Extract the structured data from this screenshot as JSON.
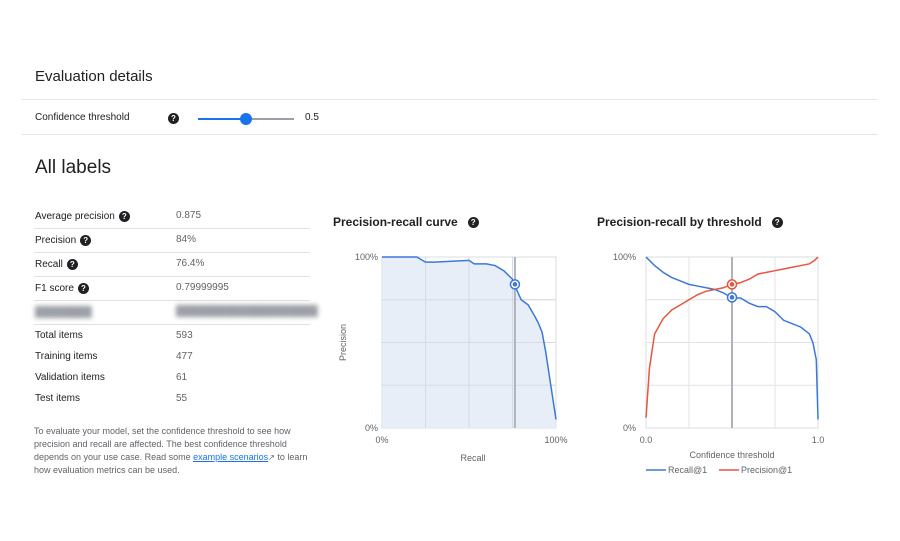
{
  "header": {
    "title": "Evaluation details"
  },
  "slider": {
    "label": "Confidence threshold",
    "value": 0.5,
    "value_text": "0.5",
    "help": "?"
  },
  "section_title": "All labels",
  "metrics": [
    {
      "label": "Average precision",
      "value": "0.875",
      "help": true
    },
    {
      "label": "Precision",
      "value": "84%",
      "help": true
    },
    {
      "label": "Recall",
      "value": "76.4%",
      "help": true
    },
    {
      "label": "F1 score",
      "value": "0.79999995",
      "help": true
    }
  ],
  "counts": [
    {
      "label": "Total items",
      "value": "593"
    },
    {
      "label": "Training items",
      "value": "477"
    },
    {
      "label": "Validation items",
      "value": "61"
    },
    {
      "label": "Test items",
      "value": "55"
    }
  ],
  "note": {
    "text_before": "To evaluate your model, set the confidence threshold to see how precision and recall are affected. The best confidence threshold depends on your use case. Read some ",
    "link": "example scenarios",
    "text_after": " to learn how evaluation metrics can be used."
  },
  "colors": {
    "accent": "#1a73e8",
    "recall": "#3c78d8",
    "precision": "#e8553e",
    "fill": "#e3ebf7"
  },
  "chart_data": [
    {
      "type": "area",
      "title": "Precision-recall curve",
      "xlabel": "Recall",
      "ylabel": "Precision",
      "x_ticks": [
        "0%",
        "100%"
      ],
      "y_ticks": [
        "0%",
        "100%"
      ],
      "xlim": [
        0,
        1
      ],
      "ylim": [
        0,
        1
      ],
      "series": [
        {
          "x": [
            0,
            0.2,
            0.25,
            0.3,
            0.5,
            0.53,
            0.6,
            0.65,
            0.7,
            0.75,
            0.76,
            0.8,
            0.84,
            0.88,
            0.9,
            0.92,
            0.94,
            1.0
          ],
          "y": [
            1.0,
            1.0,
            0.97,
            0.97,
            0.98,
            0.96,
            0.96,
            0.95,
            0.92,
            0.87,
            0.84,
            0.75,
            0.72,
            0.65,
            0.61,
            0.56,
            0.45,
            0.05
          ]
        }
      ],
      "marker": {
        "x": 0.764,
        "y": 0.84
      },
      "threshold_x": 0.764,
      "grid": true
    },
    {
      "type": "line",
      "title": "Precision-recall by threshold",
      "xlabel": "Confidence threshold",
      "x_ticks": [
        "0.0",
        "1.0"
      ],
      "y_ticks": [
        "0%",
        "100%"
      ],
      "xlim": [
        0,
        1
      ],
      "ylim": [
        0,
        1
      ],
      "legend": "bottom",
      "series": [
        {
          "name": "Recall@1",
          "x": [
            0,
            0.05,
            0.1,
            0.15,
            0.2,
            0.25,
            0.3,
            0.35,
            0.4,
            0.45,
            0.5,
            0.55,
            0.6,
            0.65,
            0.7,
            0.75,
            0.8,
            0.85,
            0.9,
            0.95,
            0.97,
            0.98,
            0.99,
            1.0
          ],
          "y": [
            1.0,
            0.95,
            0.91,
            0.88,
            0.86,
            0.84,
            0.83,
            0.82,
            0.81,
            0.79,
            0.76,
            0.76,
            0.73,
            0.71,
            0.71,
            0.68,
            0.63,
            0.61,
            0.59,
            0.55,
            0.5,
            0.45,
            0.4,
            0.05
          ]
        },
        {
          "name": "Precision@1",
          "x": [
            0,
            0.02,
            0.05,
            0.1,
            0.15,
            0.2,
            0.25,
            0.3,
            0.35,
            0.4,
            0.45,
            0.5,
            0.55,
            0.6,
            0.65,
            0.7,
            0.75,
            0.8,
            0.85,
            0.9,
            0.95,
            0.98,
            1.0
          ],
          "y": [
            0.06,
            0.35,
            0.55,
            0.64,
            0.69,
            0.72,
            0.75,
            0.78,
            0.8,
            0.81,
            0.82,
            0.84,
            0.85,
            0.87,
            0.9,
            0.91,
            0.92,
            0.93,
            0.94,
            0.95,
            0.96,
            0.98,
            1.0
          ]
        }
      ],
      "threshold_x": 0.5,
      "markers": [
        {
          "series": "Recall@1",
          "x": 0.5,
          "y": 0.764
        },
        {
          "series": "Precision@1",
          "x": 0.5,
          "y": 0.84
        }
      ],
      "grid": true
    }
  ]
}
